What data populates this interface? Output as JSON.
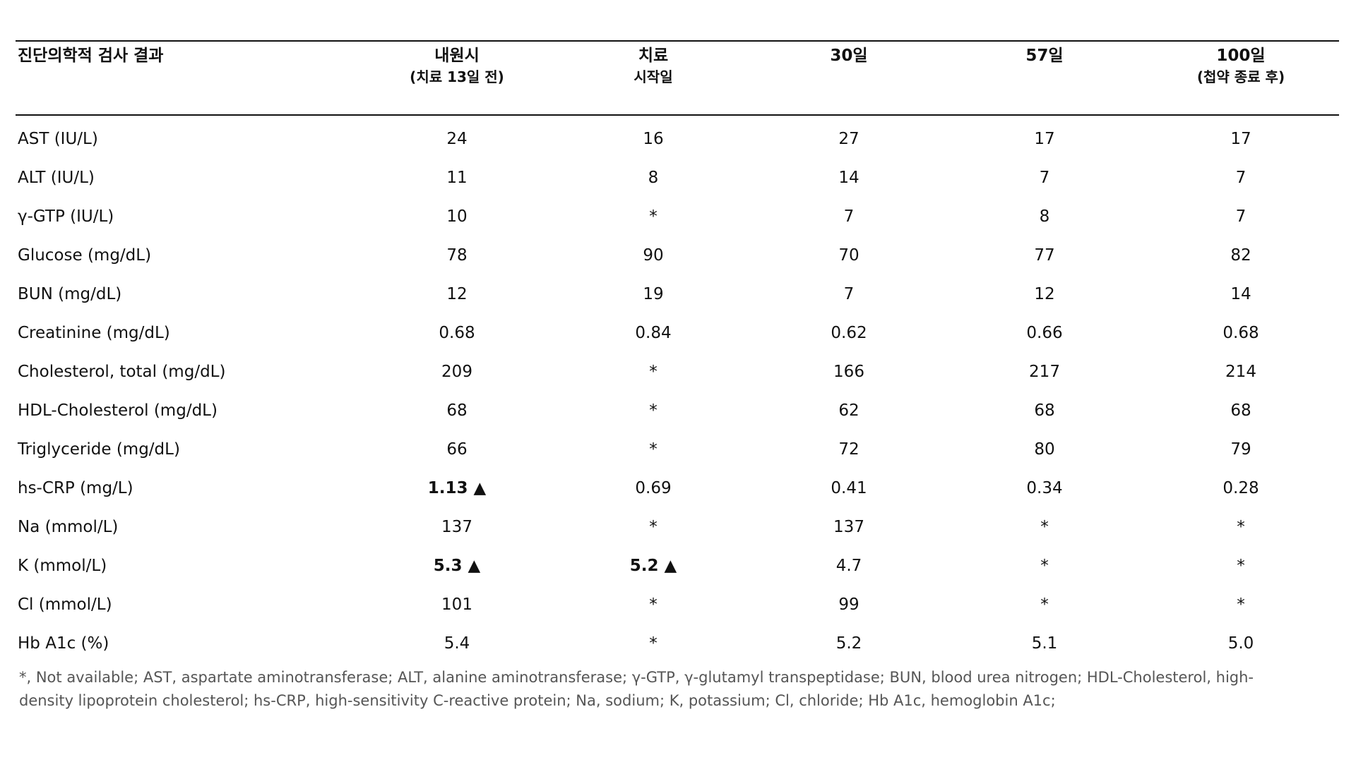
{
  "table": {
    "header": [
      [
        "진단의학적 검사 결과"
      ],
      [
        "내원시",
        "(치료 13일 전)"
      ],
      [
        "치료",
        "시작일"
      ],
      [
        "30일"
      ],
      [
        "57일"
      ],
      [
        "100일",
        "(첩약 종료 후)"
      ]
    ],
    "rows": [
      [
        "AST (IU/L)",
        "24",
        "16",
        "27",
        "17",
        "17"
      ],
      [
        "ALT (IU/L)",
        "11",
        "8",
        "14",
        "7",
        "7"
      ],
      [
        "γ-GTP (IU/L)",
        "10",
        "*",
        "7",
        "8",
        "7"
      ],
      [
        "Glucose (mg/dL)",
        "78",
        "90",
        "70",
        "77",
        "82"
      ],
      [
        "BUN (mg/dL)",
        "12",
        "19",
        "7",
        "12",
        "14"
      ],
      [
        "Creatinine (mg/dL)",
        "0.68",
        "0.84",
        "0.62",
        "0.66",
        "0.68"
      ],
      [
        "Cholesterol, total (mg/dL)",
        "209",
        "*",
        "166",
        "217",
        "214"
      ],
      [
        "HDL-Cholesterol (mg/dL)",
        "68",
        "*",
        "62",
        "68",
        "68"
      ],
      [
        "Triglyceride (mg/dL)",
        "66",
        "*",
        "72",
        "80",
        "79"
      ],
      [
        "hs-CRP (mg/L)",
        "1.13 ▲",
        "0.69",
        "0.41",
        "0.34",
        "0.28"
      ],
      [
        "Na (mmol/L)",
        "137",
        "*",
        "137",
        "*",
        "*"
      ],
      [
        "K (mmol/L)",
        "5.3 ▲",
        "5.2 ▲",
        "4.7",
        "*",
        "*"
      ],
      [
        "Cl (mmol/L)",
        "101",
        "*",
        "99",
        "*",
        "*"
      ],
      [
        "Hb A1c (%)",
        "5.4",
        "*",
        "5.2",
        "5.1",
        "5.0"
      ]
    ],
    "footnote": [
      "*, Not available; AST, aspartate aminotransferase; ALT, alanine aminotransferase; γ-GTP, γ-glutamyl transpeptidase; BUN, blood urea nitrogen; HDL-Cholesterol, high-",
      "density lipoprotein cholesterol; hs-CRP, high-sensitivity C-reactive protein; Na, sodium; K, potassium; Cl, chloride; Hb A1c, hemoglobin A1c;"
    ]
  }
}
